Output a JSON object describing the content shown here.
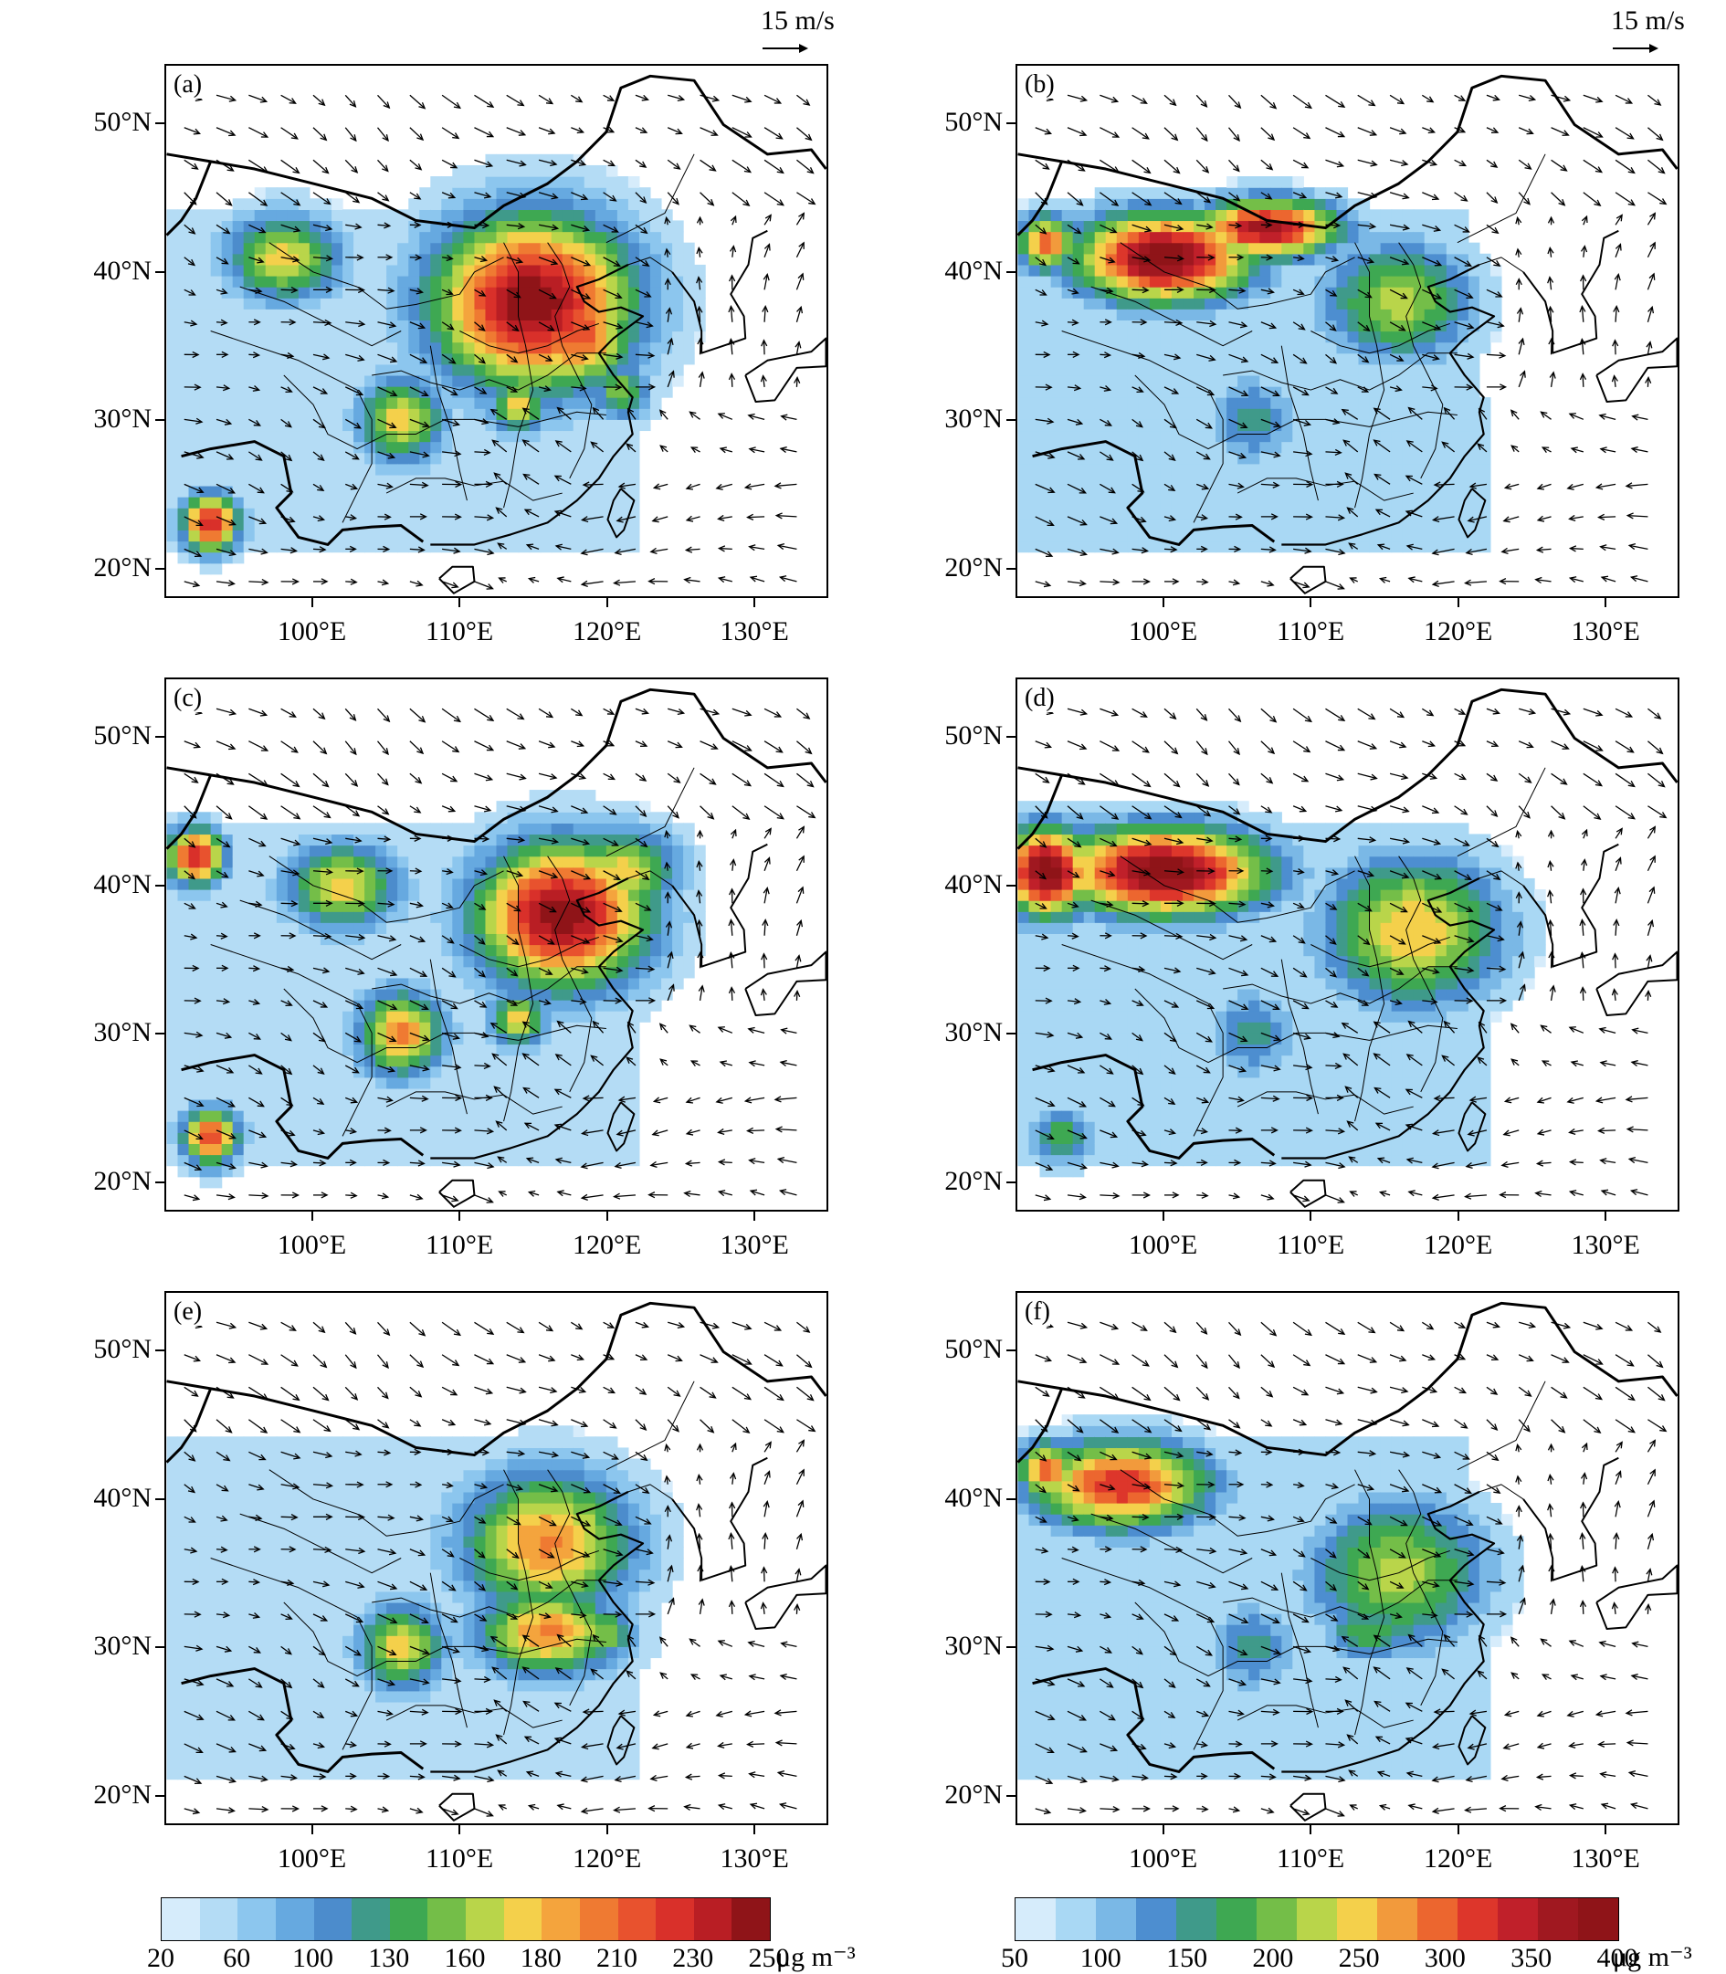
{
  "reference_vector": {
    "label": "15 m/s",
    "value_ms": 15
  },
  "panels": [
    {
      "label": "(a)",
      "scale": "left",
      "hotspots": [
        [
          115,
          38,
          7,
          6,
          1.0
        ],
        [
          118,
          36,
          4,
          4,
          0.8
        ],
        [
          98,
          41,
          4,
          3,
          0.6
        ],
        [
          106,
          30,
          3,
          3,
          0.6
        ],
        [
          93,
          23,
          2,
          2,
          0.9
        ],
        [
          114,
          31,
          2,
          2,
          0.6
        ],
        [
          121,
          32,
          2,
          2,
          0.5
        ]
      ]
    },
    {
      "label": "(b)",
      "scale": "right",
      "hotspots": [
        [
          100,
          41,
          6,
          3,
          1.0
        ],
        [
          107,
          43,
          5,
          2,
          0.9
        ],
        [
          92,
          42,
          2,
          2,
          0.7
        ],
        [
          116,
          38,
          5,
          4,
          0.5
        ],
        [
          106,
          30,
          3,
          3,
          0.3
        ]
      ]
    },
    {
      "label": "(c)",
      "scale": "left",
      "hotspots": [
        [
          117,
          38,
          6,
          5,
          1.0
        ],
        [
          121,
          41,
          4,
          3,
          0.6
        ],
        [
          102,
          40,
          4,
          3,
          0.6
        ],
        [
          92,
          42,
          2,
          2,
          0.9
        ],
        [
          106,
          30,
          3,
          3,
          0.7
        ],
        [
          93,
          23,
          2,
          2,
          0.8
        ],
        [
          114,
          31,
          2,
          2,
          0.6
        ]
      ]
    },
    {
      "label": "(d)",
      "scale": "right",
      "hotspots": [
        [
          100,
          41,
          7,
          3,
          1.0
        ],
        [
          92,
          41,
          3,
          3,
          1.0
        ],
        [
          117,
          37,
          6,
          5,
          0.6
        ],
        [
          106,
          30,
          3,
          3,
          0.3
        ],
        [
          93,
          23,
          2,
          2,
          0.4
        ]
      ]
    },
    {
      "label": "(e)",
      "scale": "left",
      "hotspots": [
        [
          116,
          37,
          6,
          5,
          0.7
        ],
        [
          116,
          31,
          5,
          3,
          0.7
        ],
        [
          106,
          30,
          3,
          3,
          0.6
        ],
        [
          120,
          31,
          2,
          2,
          0.5
        ]
      ]
    },
    {
      "label": "(f)",
      "scale": "right",
      "hotspots": [
        [
          97,
          41,
          6,
          3,
          0.8
        ],
        [
          92,
          42,
          2,
          2,
          0.7
        ],
        [
          116,
          35,
          6,
          5,
          0.5
        ],
        [
          114,
          31,
          3,
          2,
          0.4
        ],
        [
          106,
          30,
          3,
          3,
          0.3
        ]
      ]
    }
  ],
  "axes": {
    "lat_labels": [
      "50°N",
      "40°N",
      "30°N",
      "20°N"
    ],
    "lat_values": [
      50,
      40,
      30,
      20
    ],
    "lon_labels": [
      "100°E",
      "110°E",
      "120°E",
      "130°E"
    ],
    "lon_values": [
      100,
      110,
      120,
      130
    ],
    "lon_range": [
      90,
      135
    ],
    "lat_range": [
      18,
      54
    ]
  },
  "colorbars": [
    {
      "id": "left",
      "tick_labels": [
        "20",
        "60",
        "100",
        "130",
        "160",
        "180",
        "210",
        "230",
        "250"
      ],
      "unit": "μg m⁻³",
      "colors": [
        "#d6ecfb",
        "#b4dcf5",
        "#8cc6ee",
        "#66a9e0",
        "#4c8ccc",
        "#3f9a8a",
        "#3ea852",
        "#74be48",
        "#b9d54a",
        "#f4d04b",
        "#f4a43d",
        "#ef7a32",
        "#e8522e",
        "#d9302a",
        "#b91e24",
        "#8f1418"
      ]
    },
    {
      "id": "right",
      "tick_labels": [
        "50",
        "100",
        "150",
        "200",
        "250",
        "300",
        "350",
        "400"
      ],
      "unit": "μg m⁻³",
      "colors": [
        "#d6ecfb",
        "#a9d8f4",
        "#7ab8e6",
        "#4d8ed0",
        "#3f9a8a",
        "#3ea852",
        "#74be48",
        "#b9d54a",
        "#f4d04b",
        "#f29a3c",
        "#ec662f",
        "#dd362b",
        "#c0202a",
        "#a01820",
        "#8f1418"
      ]
    }
  ]
}
